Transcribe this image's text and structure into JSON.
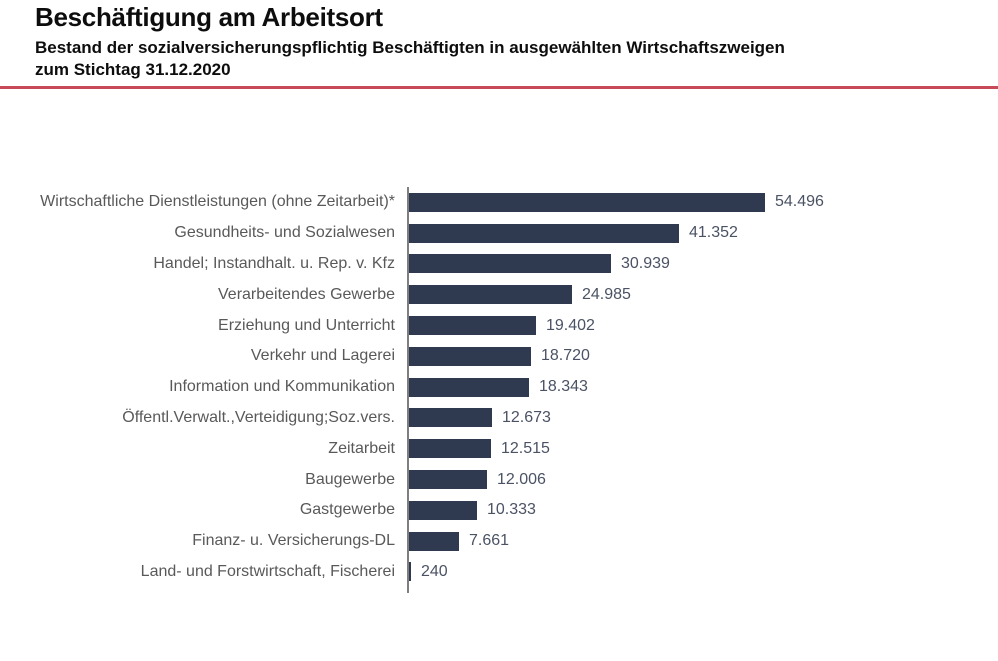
{
  "header": {
    "title": "Beschäftigung am Arbeitsort",
    "subtitle_line1": "Bestand der sozialversicherungspflichtig Beschäftigten in ausgewählten Wirtschaftszweigen",
    "subtitle_line2": "zum Stichtag 31.12.2020"
  },
  "colors": {
    "accent_rule": "#c84a59",
    "bar": "#2f3a50",
    "category_label": "#595959",
    "value_label": "#4a5264",
    "axis": "#7f7f7f"
  },
  "chart_data": {
    "type": "bar",
    "orientation": "horizontal",
    "title": "Beschäftigung am Arbeitsort",
    "subtitle": "Bestand der sozialversicherungspflichtig Beschäftigten in ausgewählten Wirtschaftszweigen zum Stichtag 31.12.2020",
    "xlabel": "",
    "ylabel": "",
    "xlim": [
      0,
      60000
    ],
    "grid": false,
    "legend": false,
    "data_labels": "outside-end",
    "categories": [
      "Wirtschaftliche Dienstleistungen (ohne Zeitarbeit)*",
      "Gesundheits- und Sozialwesen",
      "Handel; Instandhalt. u. Rep. v. Kfz",
      "Verarbeitendes Gewerbe",
      "Erziehung und Unterricht",
      "Verkehr und Lagerei",
      "Information und Kommunikation",
      "Öffentl.Verwalt.,Verteidigung;Soz.vers.",
      "Zeitarbeit",
      "Baugewerbe",
      "Gastgewerbe",
      "Finanz- u. Versicherungs-DL",
      "Land- und Forstwirtschaft, Fischerei"
    ],
    "values": [
      54496,
      41352,
      30939,
      24985,
      19402,
      18720,
      18343,
      12673,
      12515,
      12006,
      10333,
      7661,
      240
    ],
    "value_labels": [
      "54.496",
      "41.352",
      "30.939",
      "24.985",
      "19.402",
      "18.720",
      "18.343",
      "12.673",
      "12.515",
      "12.006",
      "10.333",
      "7.661",
      "240"
    ]
  }
}
